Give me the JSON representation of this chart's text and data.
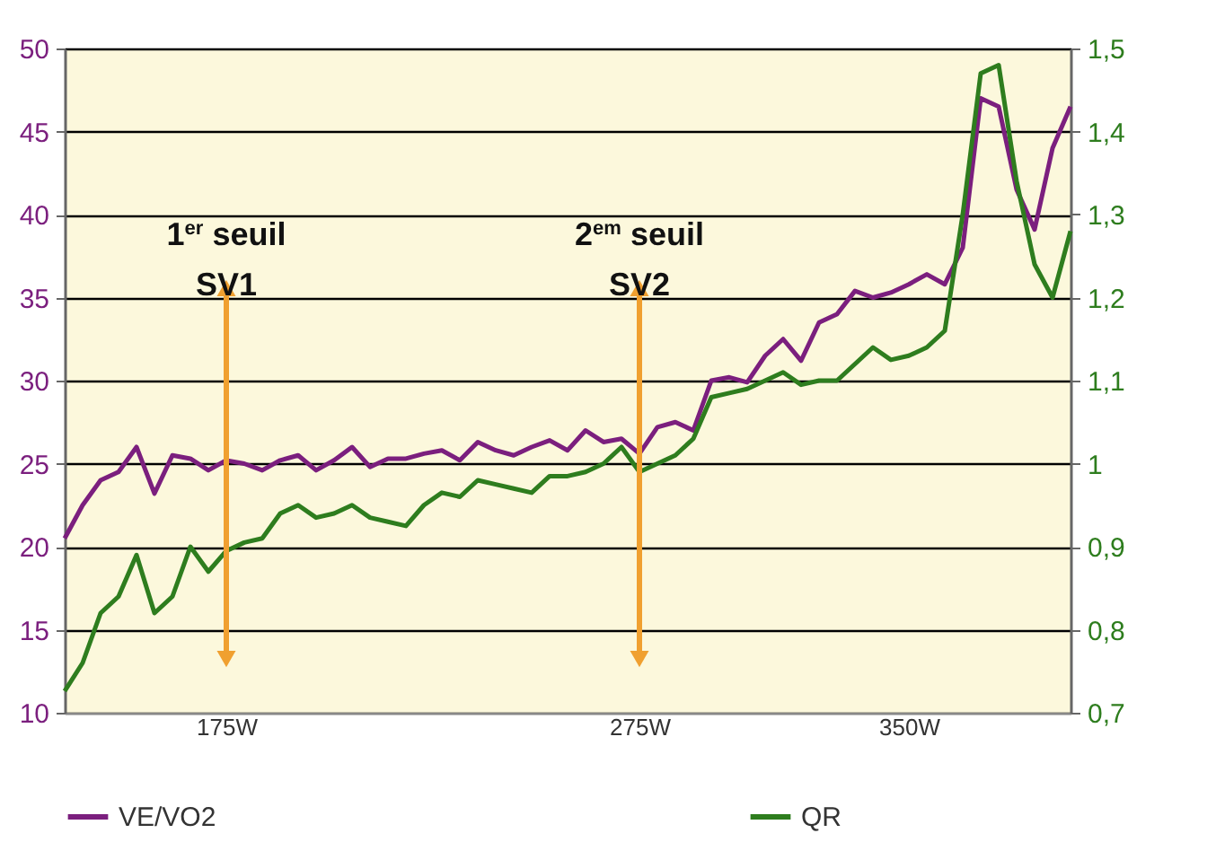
{
  "chart_data": {
    "type": "line",
    "categories": [
      null,
      null,
      null,
      null,
      null,
      null,
      null,
      null,
      null,
      "175W",
      null,
      null,
      null,
      null,
      null,
      null,
      null,
      null,
      null,
      null,
      null,
      null,
      null,
      null,
      null,
      null,
      null,
      null,
      null,
      null,
      null,
      null,
      "275W",
      null,
      null,
      null,
      null,
      null,
      null,
      null,
      null,
      null,
      null,
      null,
      null,
      null,
      null,
      "350W",
      null,
      null,
      null,
      null,
      null,
      null,
      null,
      null,
      null
    ],
    "series": [
      {
        "name": "VE/VO2",
        "color": "#7b1f7e",
        "values": [
          20.5,
          22.5,
          24,
          24.5,
          26,
          23.2,
          25.5,
          25.3,
          24.6,
          25.2,
          25,
          24.6,
          25.2,
          25.5,
          24.6,
          25.2,
          26,
          24.8,
          25.3,
          25.3,
          25.6,
          25.8,
          25.2,
          26.3,
          25.8,
          25.5,
          26,
          26.4,
          25.8,
          27,
          26.3,
          26.5,
          25.6,
          27.2,
          27.5,
          27,
          30,
          30.2,
          29.9,
          31.5,
          32.5,
          31.2,
          33.5,
          34,
          35.4,
          35,
          35.3,
          35.8,
          36.4,
          35.8,
          38,
          47,
          46.5,
          41.5,
          39.1,
          44,
          46.5
        ]
      },
      {
        "name": "QR",
        "color": "#2e7d1e",
        "axis": "y2",
        "values": [
          0.726,
          0.76,
          0.82,
          0.84,
          0.89,
          0.82,
          0.84,
          0.9,
          0.87,
          0.895,
          0.905,
          0.91,
          0.94,
          0.95,
          0.935,
          0.94,
          0.95,
          0.935,
          0.93,
          0.925,
          0.95,
          0.965,
          0.96,
          0.98,
          0.975,
          0.97,
          0.965,
          0.985,
          0.985,
          0.99,
          1.0,
          1.02,
          0.99,
          1.0,
          1.01,
          1.03,
          1.08,
          1.085,
          1.09,
          1.1,
          1.11,
          1.095,
          1.1,
          1.1,
          1.12,
          1.14,
          1.125,
          1.13,
          1.14,
          1.16,
          1.3,
          1.47,
          1.48,
          1.34,
          1.24,
          1.2,
          1.28
        ]
      }
    ],
    "ylim": [
      10,
      50
    ],
    "yticks": [
      10,
      15,
      20,
      25,
      30,
      35,
      40,
      45,
      50
    ],
    "y2lim": [
      0.7,
      1.5
    ],
    "y2ticks": [
      {
        "value": 0.7,
        "label": "0,7"
      },
      {
        "value": 0.8,
        "label": "0,8"
      },
      {
        "value": 0.9,
        "label": "0,9"
      },
      1,
      {
        "value": 1.1,
        "label": "1,1"
      },
      {
        "value": 1.2,
        "label": "1,2"
      },
      {
        "value": 1.3,
        "label": "1,3"
      },
      {
        "value": 1.4,
        "label": "1,4"
      },
      {
        "value": 1.5,
        "label": "1,5"
      }
    ],
    "ref_lines": [
      {
        "axis": "x",
        "value": "175W",
        "label": "1$^{er}$ seuil\nSV1",
        "color": "#f0a030"
      },
      {
        "axis": "x",
        "value": "275W",
        "label": "2$^{em}$ seuil\nSV2",
        "color": "#f0a030"
      }
    ],
    "grid": "y",
    "legend": "bottom"
  }
}
